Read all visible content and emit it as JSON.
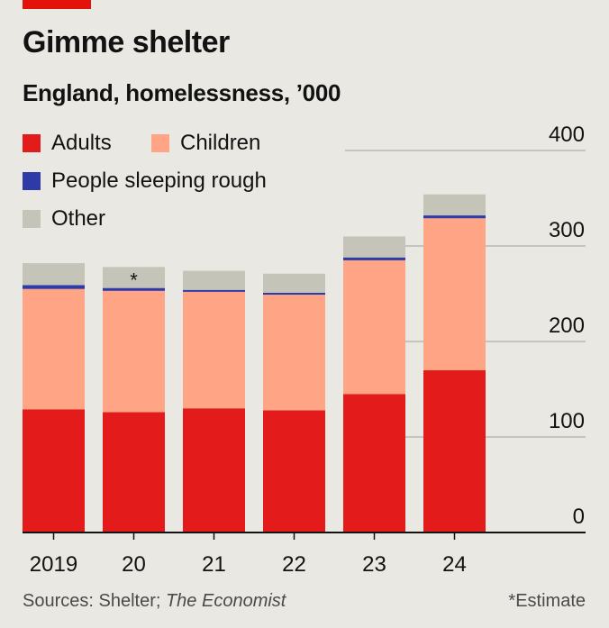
{
  "header": {
    "title": "Gimme shelter",
    "subtitle": "England, homelessness, ’000"
  },
  "colors": {
    "accent": "#e3120b",
    "adults": "#e31b1b",
    "children": "#ffa585",
    "rough": "#2e3aa8",
    "other": "#c4c4b8",
    "grid": "#b9b8b1",
    "axis": "#121212"
  },
  "legend": {
    "adults": "Adults",
    "children": "Children",
    "rough": "People sleeping rough",
    "other": "Other"
  },
  "footer": {
    "source_prefix": "Sources: Shelter; ",
    "source_italic": "The Economist",
    "footnote": "*Estimate"
  },
  "chart_data": {
    "type": "bar",
    "stacked": true,
    "categories": [
      "2019",
      "20",
      "21",
      "22",
      "23",
      "24"
    ],
    "annotations": [
      {
        "category": "20",
        "text": "*"
      }
    ],
    "series": [
      {
        "name": "Adults",
        "values": [
          129,
          126,
          130,
          128,
          145,
          170
        ]
      },
      {
        "name": "Children",
        "values": [
          126,
          127,
          122,
          121,
          140,
          159
        ]
      },
      {
        "name": "People sleeping rough",
        "values": [
          4,
          3,
          2,
          2,
          3,
          3
        ]
      },
      {
        "name": "Other",
        "values": [
          23,
          22,
          20,
          20,
          22,
          22
        ]
      }
    ],
    "ylim": [
      0,
      400
    ],
    "yticks": [
      0,
      100,
      200,
      300,
      400
    ],
    "y_axis_side": "right",
    "grid": true,
    "legend_position": "top-left"
  }
}
